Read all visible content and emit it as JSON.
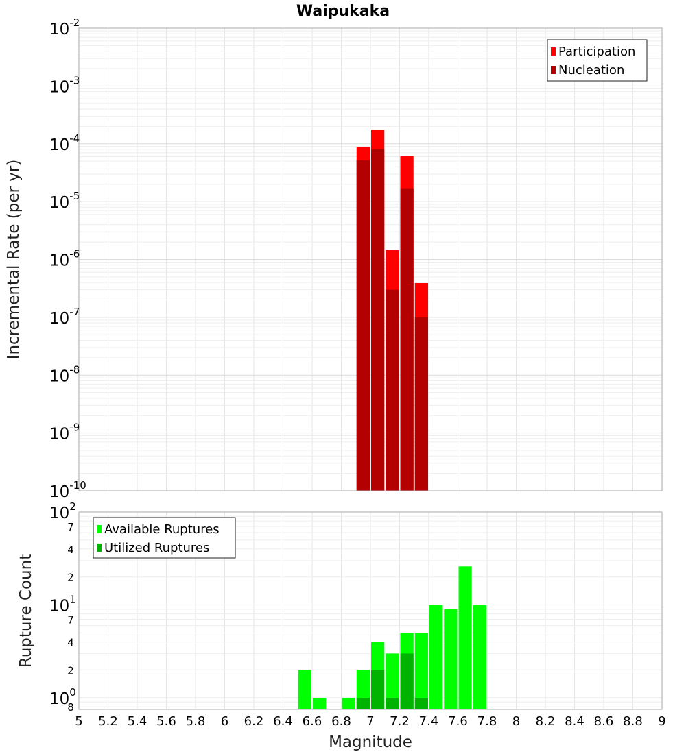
{
  "chart_data": [
    {
      "type": "bar",
      "title": "Waipukaka",
      "xlabel": "",
      "ylabel": "Incremental Rate (per yr)",
      "y_scale": "log",
      "ylim": [
        1e-10,
        0.01
      ],
      "xlim": [
        5,
        9
      ],
      "bar_width": 0.1,
      "grid": true,
      "legend_position": "top-right",
      "y_ticks": [
        {
          "base": "10",
          "exp": "-2",
          "value": 0.01
        },
        {
          "base": "10",
          "exp": "-3",
          "value": 0.001
        },
        {
          "base": "10",
          "exp": "-4",
          "value": 0.0001
        },
        {
          "base": "10",
          "exp": "-5",
          "value": 1e-05
        },
        {
          "base": "10",
          "exp": "-6",
          "value": 1e-06
        },
        {
          "base": "10",
          "exp": "-7",
          "value": 1e-07
        },
        {
          "base": "10",
          "exp": "-8",
          "value": 1e-08
        },
        {
          "base": "10",
          "exp": "-9",
          "value": 1e-09
        },
        {
          "base": "10",
          "exp": "-10",
          "value": 1e-10
        }
      ],
      "series": [
        {
          "name": "Participation",
          "color": "#ff0000",
          "x": [
            6.95,
            7.05,
            7.15,
            7.25,
            7.35
          ],
          "values": [
            8.8e-05,
            0.000175,
            1.45e-06,
            6.1e-05,
            3.9e-07
          ]
        },
        {
          "name": "Nucleation",
          "color": "#b30000",
          "x": [
            6.95,
            7.05,
            7.15,
            7.25,
            7.35
          ],
          "values": [
            5.2e-05,
            8e-05,
            3e-07,
            1.7e-05,
            1e-07
          ]
        }
      ]
    },
    {
      "type": "bar",
      "title": "",
      "xlabel": "Magnitude",
      "ylabel": "Rupture Count",
      "y_scale": "log",
      "ylim": [
        0.75,
        100
      ],
      "xlim": [
        5,
        9
      ],
      "bar_width": 0.1,
      "grid": true,
      "legend_position": "top-left",
      "x_ticks": [
        "5",
        "5.2",
        "5.4",
        "5.6",
        "5.8",
        "6",
        "6.2",
        "6.4",
        "6.6",
        "6.8",
        "7",
        "7.2",
        "7.4",
        "7.6",
        "7.8",
        "8",
        "8.2",
        "8.4",
        "8.6",
        "8.8",
        "9"
      ],
      "y_major_ticks": [
        {
          "base": "10",
          "exp": "2",
          "value": 100
        },
        {
          "base": "10",
          "exp": "1",
          "value": 10
        },
        {
          "base": "10",
          "exp": "0",
          "value": 1
        }
      ],
      "y_minor_ticks": [
        {
          "label": "7",
          "value": 70
        },
        {
          "label": "4",
          "value": 40
        },
        {
          "label": "2",
          "value": 20
        },
        {
          "label": "7",
          "value": 7
        },
        {
          "label": "4",
          "value": 4
        },
        {
          "label": "2",
          "value": 2
        },
        {
          "label": "8",
          "value": 0.8
        }
      ],
      "series": [
        {
          "name": "Available Ruptures",
          "color": "#00ff00",
          "x": [
            6.55,
            6.65,
            6.85,
            6.95,
            7.05,
            7.15,
            7.25,
            7.35,
            7.45,
            7.55,
            7.65,
            7.75
          ],
          "values": [
            2,
            1,
            1,
            2,
            4,
            3,
            5,
            5,
            10,
            9,
            26,
            10
          ]
        },
        {
          "name": "Utilized Ruptures",
          "color": "#00b300",
          "x": [
            6.95,
            7.05,
            7.15,
            7.25,
            7.35
          ],
          "values": [
            1,
            2,
            1,
            3,
            1
          ]
        }
      ]
    }
  ]
}
